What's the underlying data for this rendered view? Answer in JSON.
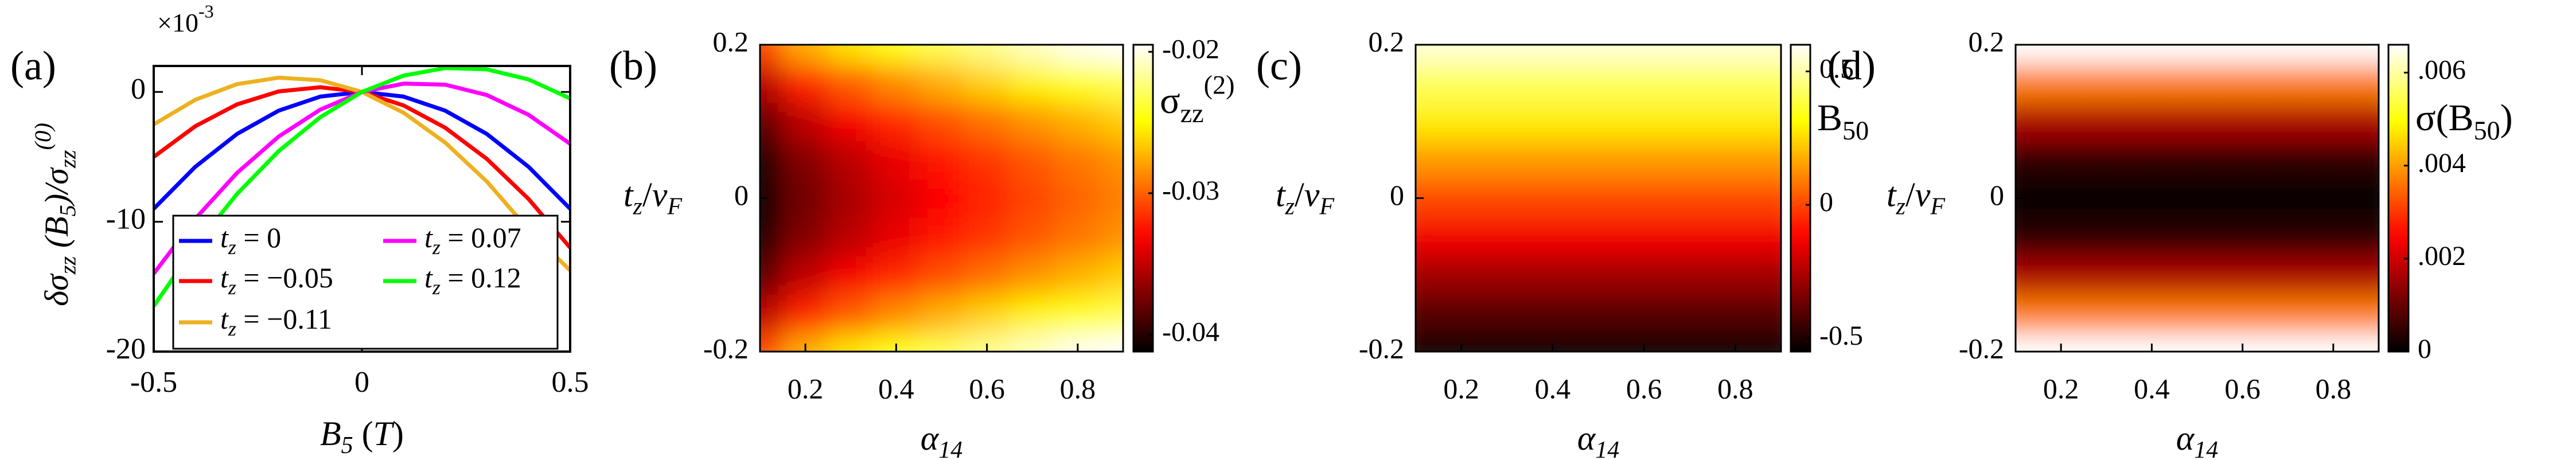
{
  "chart_data": [
    {
      "type": "line",
      "panel_label": "(a)",
      "x": [
        -0.5,
        -0.4,
        -0.3,
        -0.2,
        -0.1,
        0,
        0.1,
        0.2,
        0.3,
        0.4,
        0.5
      ],
      "series": [
        {
          "name": [
            "t",
            "z",
            " = 0"
          ],
          "color": "#0000ff",
          "values": [
            -9,
            -5.76,
            -3.24,
            -1.44,
            -0.36,
            0,
            -0.36,
            -1.44,
            -3.24,
            -5.76,
            -9
          ]
        },
        {
          "name": [
            "t",
            "z",
            " = −0.05"
          ],
          "color": "#ff0000",
          "values": [
            -5,
            -2.64,
            -0.96,
            0.04,
            0.36,
            0,
            -1.04,
            -2.76,
            -5.16,
            -8.24,
            -12
          ]
        },
        {
          "name": [
            "t",
            "z",
            " = −0.11"
          ],
          "color": "#edb120",
          "values": [
            -2.5,
            -0.6,
            0.6,
            1.1,
            0.9,
            0,
            -1.6,
            -3.9,
            -6.9,
            -10.6,
            -13.75
          ]
        },
        {
          "name": [
            "t",
            "z",
            " = 0.07"
          ],
          "color": "#ff00ff",
          "values": [
            -14,
            -9.76,
            -6.24,
            -3.44,
            -1.36,
            0,
            0.64,
            0.56,
            -0.24,
            -1.76,
            -4
          ]
        },
        {
          "name": [
            "t",
            "z",
            " = 0.12"
          ],
          "color": "#00ff00",
          "values": [
            -16.5,
            -11.84,
            -7.86,
            -4.56,
            -1.94,
            0,
            1.26,
            1.84,
            1.74,
            0.96,
            -0.5
          ]
        }
      ],
      "xlim": [
        -0.5,
        0.5
      ],
      "ylim": [
        -20,
        2
      ],
      "xticks": [
        -0.5,
        0,
        0.5
      ],
      "yticks": [
        -20,
        -10,
        0
      ],
      "xlabel": [
        "B",
        "5",
        " (",
        "T",
        ")"
      ],
      "ylabel": [
        "δσ",
        "zz",
        " (B",
        "5",
        ")/σ",
        "zz",
        "(0)"
      ],
      "y_exponent": [
        "×10",
        "-3"
      ]
    },
    {
      "type": "heatmap",
      "panel_label": "(b)",
      "colormap": "hot",
      "x": [
        0.1,
        0.2,
        0.3,
        0.4,
        0.5,
        0.6,
        0.7,
        0.8,
        0.9
      ],
      "y": [
        -0.2,
        -0.15,
        -0.1,
        -0.05,
        0,
        0.05,
        0.1,
        0.15,
        0.2
      ],
      "z": [
        [
          -0.031,
          -0.0276,
          -0.0258,
          -0.0243,
          -0.0231,
          -0.022,
          -0.0209,
          -0.0199,
          -0.019
        ],
        [
          -0.0354,
          -0.032,
          -0.0302,
          -0.0287,
          -0.0275,
          -0.0264,
          -0.0253,
          -0.0243,
          -0.0234
        ],
        [
          -0.0385,
          -0.0351,
          -0.0333,
          -0.0318,
          -0.0306,
          -0.0295,
          -0.0284,
          -0.0274,
          -0.0265
        ],
        [
          -0.0404,
          -0.037,
          -0.0352,
          -0.0337,
          -0.0325,
          -0.0314,
          -0.0303,
          -0.0293,
          -0.0284
        ],
        [
          -0.041,
          -0.0376,
          -0.0358,
          -0.0343,
          -0.0331,
          -0.032,
          -0.0309,
          -0.0299,
          -0.029
        ],
        [
          -0.0404,
          -0.037,
          -0.0352,
          -0.0337,
          -0.0325,
          -0.0314,
          -0.0303,
          -0.0293,
          -0.0284
        ],
        [
          -0.0385,
          -0.0351,
          -0.0333,
          -0.0318,
          -0.0306,
          -0.0295,
          -0.0284,
          -0.0274,
          -0.0265
        ],
        [
          -0.0354,
          -0.032,
          -0.0302,
          -0.0287,
          -0.0275,
          -0.0264,
          -0.0253,
          -0.0243,
          -0.0234
        ],
        [
          -0.031,
          -0.0276,
          -0.0258,
          -0.0243,
          -0.0231,
          -0.022,
          -0.0209,
          -0.0199,
          -0.019
        ]
      ],
      "xlim": [
        0.1,
        0.9
      ],
      "ylim": [
        -0.2,
        0.2
      ],
      "xticks": [
        0.2,
        0.4,
        0.6,
        0.8
      ],
      "yticks": [
        -0.2,
        0,
        0.2
      ],
      "clim": [
        -0.0412,
        -0.0195
      ],
      "cticks": [
        -0.04,
        -0.03,
        -0.02
      ],
      "xlabel": [
        "α",
        "14"
      ],
      "ylabel": [
        "t",
        "z",
        "/",
        "v",
        "F"
      ],
      "clabel": [
        "σ",
        "zz",
        "(2)"
      ]
    },
    {
      "type": "heatmap",
      "panel_label": "(c)",
      "colormap": "hot",
      "x": [
        0.1,
        0.2,
        0.3,
        0.4,
        0.5,
        0.6,
        0.7,
        0.8,
        0.9
      ],
      "y": [
        -0.2,
        -0.15,
        -0.1,
        -0.05,
        0,
        0.05,
        0.1,
        0.15,
        0.2
      ],
      "z": [
        [
          -0.55,
          -0.55,
          -0.55,
          -0.55,
          -0.55,
          -0.55,
          -0.55,
          -0.55,
          -0.55
        ],
        [
          -0.41,
          -0.41,
          -0.41,
          -0.41,
          -0.41,
          -0.41,
          -0.41,
          -0.41,
          -0.41
        ],
        [
          -0.28,
          -0.28,
          -0.28,
          -0.28,
          -0.28,
          -0.28,
          -0.28,
          -0.28,
          -0.28
        ],
        [
          -0.14,
          -0.14,
          -0.14,
          -0.14,
          -0.14,
          -0.14,
          -0.14,
          -0.14,
          -0.14
        ],
        [
          0,
          0,
          0,
          0,
          0,
          0,
          0,
          0,
          0
        ],
        [
          0.14,
          0.14,
          0.14,
          0.14,
          0.14,
          0.14,
          0.14,
          0.14,
          0.14
        ],
        [
          0.28,
          0.28,
          0.28,
          0.28,
          0.28,
          0.28,
          0.28,
          0.28,
          0.28
        ],
        [
          0.41,
          0.41,
          0.41,
          0.41,
          0.41,
          0.41,
          0.41,
          0.41,
          0.41
        ],
        [
          0.55,
          0.55,
          0.55,
          0.55,
          0.55,
          0.55,
          0.55,
          0.55,
          0.55
        ]
      ],
      "xlim": [
        0.1,
        0.9
      ],
      "ylim": [
        -0.2,
        0.2
      ],
      "xticks": [
        0.2,
        0.4,
        0.6,
        0.8
      ],
      "yticks": [
        -0.2,
        0,
        0.2
      ],
      "clim": [
        -0.55,
        0.6
      ],
      "cticks": [
        -0.5,
        0,
        0.5
      ],
      "xlabel": [
        "α",
        "14"
      ],
      "ylabel": [
        "t",
        "z",
        "/",
        "v",
        "F"
      ],
      "clabel": [
        "B",
        "50"
      ]
    },
    {
      "type": "heatmap",
      "panel_label": "(d)",
      "colormap": "hot",
      "x": [
        0.1,
        0.2,
        0.3,
        0.4,
        0.5,
        0.6,
        0.7,
        0.8,
        0.9
      ],
      "y": [
        -0.2,
        -0.15,
        -0.1,
        -0.05,
        0,
        0.05,
        0.1,
        0.15,
        0.2
      ],
      "z": [
        [
          0.0066,
          0.0066,
          0.0066,
          0.0066,
          0.0066,
          0.0066,
          0.0066,
          0.0066,
          0.0066
        ],
        [
          0.0037,
          0.0037,
          0.0037,
          0.0037,
          0.0037,
          0.0037,
          0.0037,
          0.0037,
          0.0037
        ],
        [
          0.00165,
          0.00165,
          0.00165,
          0.00165,
          0.00165,
          0.00165,
          0.00165,
          0.00165,
          0.00165
        ],
        [
          0.0004,
          0.0004,
          0.0004,
          0.0004,
          0.0004,
          0.0004,
          0.0004,
          0.0004,
          0.0004
        ],
        [
          0,
          0,
          0,
          0,
          0,
          0,
          0,
          0,
          0
        ],
        [
          0.0004,
          0.0004,
          0.0004,
          0.0004,
          0.0004,
          0.0004,
          0.0004,
          0.0004,
          0.0004
        ],
        [
          0.00165,
          0.00165,
          0.00165,
          0.00165,
          0.00165,
          0.00165,
          0.00165,
          0.00165,
          0.00165
        ],
        [
          0.0037,
          0.0037,
          0.0037,
          0.0037,
          0.0037,
          0.0037,
          0.0037,
          0.0037,
          0.0037
        ],
        [
          0.0066,
          0.0066,
          0.0066,
          0.0066,
          0.0066,
          0.0066,
          0.0066,
          0.0066,
          0.0066
        ]
      ],
      "xlim": [
        0.1,
        0.9
      ],
      "ylim": [
        -0.2,
        0.2
      ],
      "xticks": [
        0.2,
        0.4,
        0.6,
        0.8
      ],
      "yticks": [
        -0.2,
        0,
        0.2
      ],
      "clim": [
        0,
        0.0066
      ],
      "cticks": [
        0,
        {
          "value": 0.002,
          "label": ".002"
        },
        {
          "value": 0.004,
          "label": ".004"
        },
        {
          "value": 0.006,
          "label": ".006"
        }
      ],
      "xlabel": [
        "α",
        "14"
      ],
      "ylabel": [
        "t",
        "z",
        "/",
        "v",
        "F"
      ],
      "clabel": [
        "σ(B",
        "50",
        ")"
      ]
    }
  ]
}
